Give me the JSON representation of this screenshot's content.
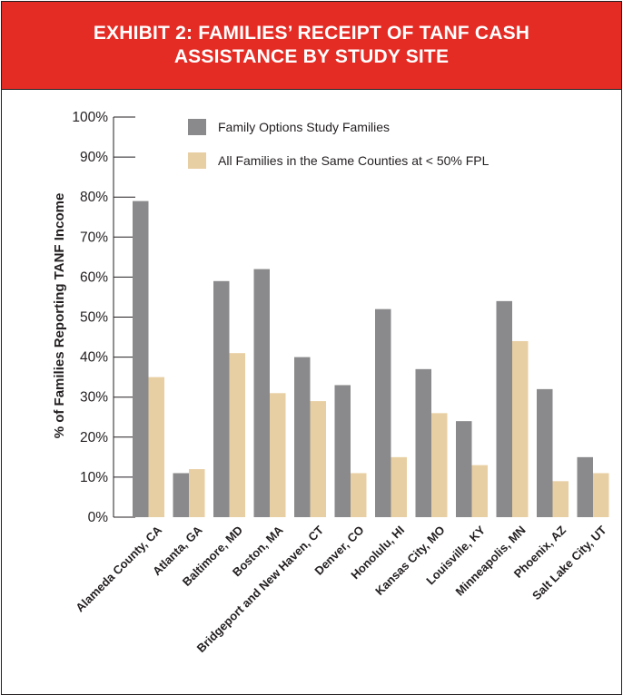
{
  "header": {
    "title": "EXHIBIT 2: FAMILIES’ RECEIPT OF TANF CASH ASSISTANCE BY STUDY SITE"
  },
  "colors": {
    "header_background": "#e42b24",
    "header_text": "#ffffff",
    "series_1": "#8a8a8c",
    "series_2": "#e8cfa3",
    "text": "#231f20"
  },
  "chart_data": {
    "type": "bar",
    "title": "",
    "xlabel": "",
    "ylabel": "% of Families Reporting TANF Income",
    "ylim": [
      0,
      100
    ],
    "yticks": [
      "0%",
      "10%",
      "20%",
      "30%",
      "40%",
      "50%",
      "60%",
      "70%",
      "80%",
      "90%",
      "100%"
    ],
    "grid": false,
    "legend_position": "top-right",
    "categories": [
      "Alameda County, CA",
      "Atlanta, GA",
      "Baltimore, MD",
      "Boston, MA",
      "Bridgeport and New Haven, CT",
      "Denver, CO",
      "Honolulu, HI",
      "Kansas City, MO",
      "Louisville, KY",
      "Minneapolis, MN",
      "Phoenix, AZ",
      "Salt Lake City, UT"
    ],
    "series": [
      {
        "name": "Family Options Study Families",
        "color": "#8a8a8c",
        "values": [
          79,
          11,
          59,
          62,
          40,
          33,
          52,
          37,
          24,
          54,
          32,
          15
        ]
      },
      {
        "name": "All Families in the Same Counties at < 50% FPL",
        "color": "#e8cfa3",
        "values": [
          35,
          12,
          41,
          31,
          29,
          11,
          15,
          26,
          13,
          44,
          9,
          11
        ]
      }
    ]
  }
}
